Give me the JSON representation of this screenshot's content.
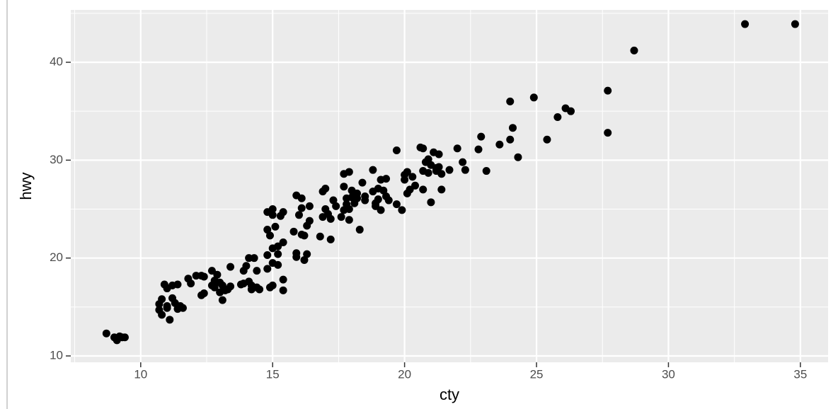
{
  "chart_data": {
    "type": "scatter",
    "x_label": "cty",
    "y_label": "hwy",
    "x": [
      8.7,
      9.0,
      9.1,
      9.2,
      9.3,
      9.4,
      10.7,
      10.7,
      10.8,
      10.8,
      10.9,
      11.0,
      11.0,
      11.1,
      11.0,
      11.2,
      11.3,
      11.2,
      11.4,
      11.4,
      11.5,
      11.6,
      11.8,
      11.9,
      12.1,
      12.3,
      12.3,
      12.4,
      12.4,
      12.7,
      12.7,
      12.8,
      12.9,
      12.8,
      13.0,
      13.0,
      13.1,
      13.1,
      13.2,
      13.3,
      13.4,
      13.4,
      13.8,
      13.9,
      13.9,
      14.0,
      14.1,
      14.1,
      14.2,
      14.2,
      14.3,
      14.4,
      14.4,
      14.5,
      14.8,
      14.8,
      14.8,
      14.8,
      14.9,
      14.9,
      15.0,
      15.0,
      15.0,
      15.0,
      15.1,
      15.0,
      15.2,
      15.2,
      15.2,
      15.3,
      15.4,
      15.4,
      15.4,
      15.4,
      15.8,
      15.9,
      15.9,
      15.9,
      16.0,
      16.1,
      16.1,
      16.1,
      16.2,
      16.2,
      16.3,
      16.3,
      16.4,
      16.4,
      16.8,
      16.9,
      16.9,
      17.0,
      17.0,
      17.1,
      17.2,
      17.2,
      17.3,
      17.4,
      17.6,
      17.7,
      17.7,
      17.7,
      17.8,
      17.8,
      17.9,
      17.9,
      17.9,
      18.0,
      18.0,
      18.1,
      18.2,
      18.2,
      18.3,
      18.4,
      18.5,
      18.5,
      18.8,
      18.8,
      18.9,
      18.9,
      19.0,
      19.0,
      19.1,
      19.1,
      19.2,
      19.3,
      19.3,
      19.4,
      19.7,
      19.9,
      19.7,
      20.0,
      20.0,
      20.1,
      20.1,
      20.2,
      20.3,
      20.4,
      20.6,
      20.7,
      20.7,
      20.7,
      20.8,
      20.9,
      20.9,
      21.0,
      21.0,
      21.1,
      21.2,
      21.2,
      21.3,
      21.3,
      21.4,
      21.4,
      21.7,
      22.0,
      22.2,
      22.3,
      22.8,
      22.9,
      23.1,
      23.6,
      24.0,
      24.0,
      24.1,
      24.3,
      24.9,
      25.4,
      25.8,
      26.1,
      26.3,
      27.7,
      27.7,
      28.7,
      32.9,
      34.8
    ],
    "y": [
      12.3,
      11.9,
      11.6,
      12.0,
      11.9,
      11.9,
      14.7,
      15.3,
      15.8,
      14.2,
      17.3,
      16.9,
      15.1,
      13.7,
      14.9,
      15.9,
      15.4,
      17.2,
      14.8,
      17.3,
      15.1,
      14.9,
      17.9,
      17.4,
      18.2,
      16.2,
      18.2,
      18.1,
      16.4,
      18.7,
      17.2,
      17.7,
      18.3,
      17.0,
      17.5,
      16.5,
      17.2,
      15.7,
      16.7,
      16.8,
      19.1,
      17.1,
      17.3,
      17.4,
      18.7,
      19.2,
      20.0,
      17.6,
      17.2,
      16.8,
      20.0,
      17.0,
      18.7,
      16.8,
      20.3,
      22.9,
      24.7,
      18.9,
      17.0,
      22.3,
      25.0,
      21.0,
      17.2,
      19.5,
      23.2,
      24.4,
      20.4,
      19.3,
      21.2,
      24.3,
      21.6,
      17.8,
      16.7,
      24.7,
      22.7,
      20.1,
      20.5,
      26.4,
      24.4,
      22.4,
      25.1,
      26.1,
      22.3,
      19.8,
      20.4,
      23.3,
      25.3,
      23.8,
      22.2,
      26.8,
      24.2,
      25.0,
      27.1,
      24.5,
      21.9,
      24.0,
      25.9,
      25.3,
      24.2,
      24.9,
      27.3,
      28.6,
      26.1,
      25.5,
      23.9,
      25.0,
      28.8,
      26.9,
      26.2,
      25.6,
      26.1,
      26.6,
      22.9,
      27.7,
      25.9,
      26.3,
      29.0,
      26.8,
      25.6,
      25.3,
      27.1,
      26.0,
      28.0,
      24.9,
      26.9,
      26.3,
      28.1,
      25.9,
      31.0,
      24.9,
      25.5,
      28.5,
      28.0,
      26.6,
      28.8,
      27.0,
      28.3,
      27.4,
      31.3,
      27.0,
      28.9,
      31.2,
      29.8,
      30.1,
      28.7,
      29.5,
      25.7,
      30.8,
      29.2,
      28.9,
      30.6,
      29.3,
      28.6,
      27.0,
      29.0,
      31.2,
      29.8,
      29.0,
      31.1,
      32.4,
      28.9,
      31.6,
      36.0,
      32.1,
      33.3,
      30.3,
      36.4,
      32.1,
      34.4,
      35.3,
      35.0,
      37.1,
      32.8,
      41.2,
      43.9,
      43.9
    ],
    "color": "#000000",
    "xlim": [
      7.35,
      36.05
    ],
    "ylim": [
      9.35,
      45.35
    ],
    "xticks": [
      10,
      15,
      20,
      25,
      30,
      35
    ],
    "yticks": [
      10,
      20,
      30,
      40
    ],
    "x_minor_ticks": [
      7.5,
      12.5,
      17.5,
      22.5,
      27.5,
      32.5
    ],
    "y_minor_ticks": [
      15,
      25,
      35,
      45
    ],
    "grid": true
  }
}
